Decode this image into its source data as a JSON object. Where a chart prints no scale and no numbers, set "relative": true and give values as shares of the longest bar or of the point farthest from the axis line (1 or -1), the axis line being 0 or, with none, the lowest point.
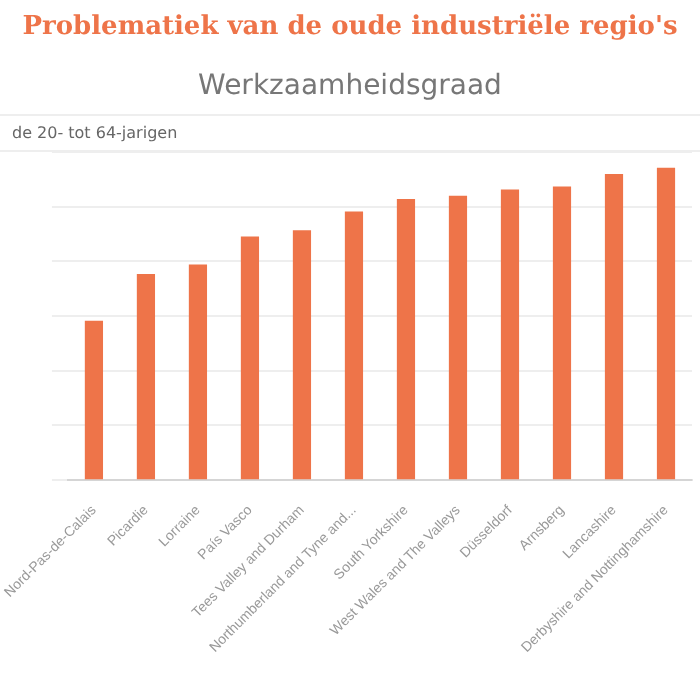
{
  "chart_data": {
    "type": "bar",
    "title": "Problematiek van de oude industriële regio's",
    "subtitle": "Werkzaamheidsgraad",
    "ylabel": "de 20- tot 64-jarigen",
    "categories": [
      "Nord-Pas-de-Calais",
      "Picardie",
      "Lorraine",
      "País Vasco",
      "Tees Valley and Durham",
      "Northumberland and Tyne and...",
      "South Yorkshire",
      "West Wales and The Valleys",
      "Düsseldorf",
      "Arnsberg",
      "Lancashire",
      "Derbyshire and Nottinghamshire"
    ],
    "values": [
      0.51,
      0.66,
      0.69,
      0.78,
      0.8,
      0.86,
      0.9,
      0.91,
      0.93,
      0.94,
      0.98,
      1
    ],
    "color": "#ee7449",
    "relative": true,
    "grid": "y",
    "legend": false
  }
}
